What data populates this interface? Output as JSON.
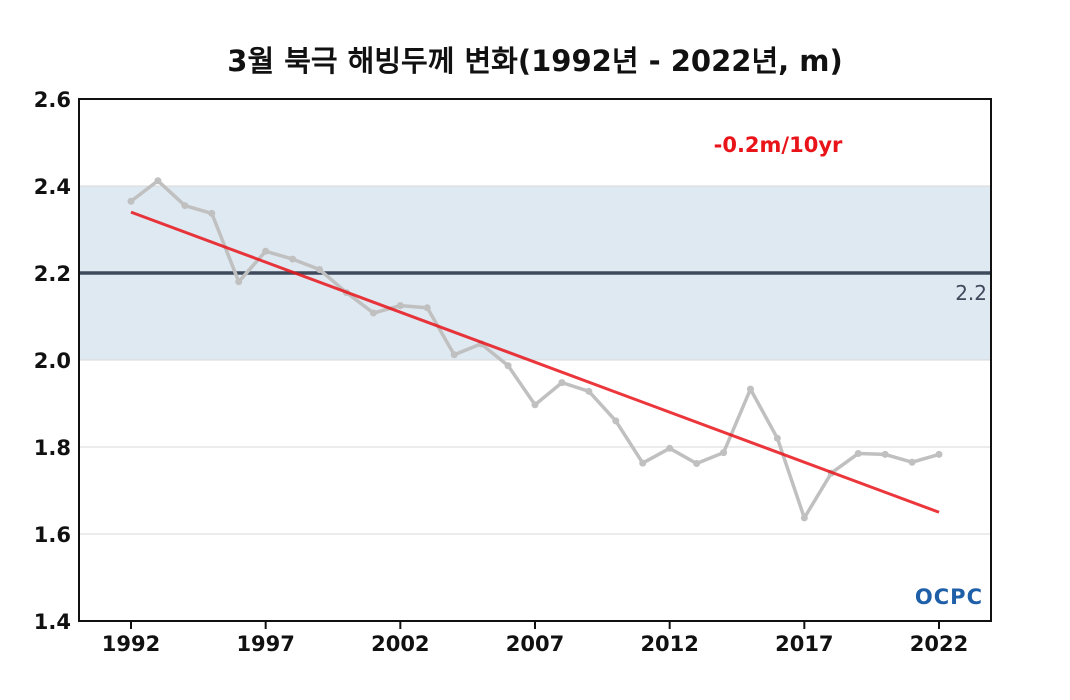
{
  "chart_data": {
    "type": "line",
    "title": "3월 북극 해빙두께 변화(1992년 - 2022년, m)",
    "xlabel": "",
    "ylabel": "",
    "xlim": [
      1992,
      2022
    ],
    "ylim": [
      1.4,
      2.6
    ],
    "x_ticks": [
      "1992",
      "1997",
      "2002",
      "2007",
      "2012",
      "2017",
      "2022"
    ],
    "y_ticks": [
      "1.4",
      "1.6",
      "1.8",
      "2.0",
      "2.2",
      "2.4",
      "2.6"
    ],
    "grid": true,
    "series": [
      {
        "color": "#c0c0c0",
        "x": [
          1992,
          1993,
          1994,
          1995,
          1996,
          1997,
          1998,
          1999,
          2000,
          2001,
          2002,
          2003,
          2004,
          2005,
          2006,
          2007,
          2008,
          2009,
          2010,
          2011,
          2012,
          2013,
          2014,
          2015,
          2016,
          2017,
          2018,
          2019,
          2020,
          2021,
          2022
        ],
        "y": [
          2.365,
          2.412,
          2.355,
          2.337,
          2.18,
          2.25,
          2.232,
          2.208,
          2.155,
          2.108,
          2.125,
          2.12,
          2.012,
          2.037,
          1.987,
          1.897,
          1.948,
          1.928,
          1.86,
          1.763,
          1.797,
          1.762,
          1.787,
          1.933,
          1.82,
          1.637,
          1.74,
          1.785,
          1.783,
          1.765,
          1.783
        ]
      }
    ],
    "trend": {
      "color": "#e8141a",
      "x": [
        1992,
        2022
      ],
      "y": [
        2.34,
        1.65
      ],
      "label": "-0.2m/10yr"
    },
    "reference_line": {
      "y": 2.2,
      "label": "2.2",
      "color": "#3e4a5c"
    },
    "shaded_band": {
      "y": [
        2.0,
        2.4
      ],
      "color": "#dfe9f2"
    },
    "logo": "OCPC"
  }
}
